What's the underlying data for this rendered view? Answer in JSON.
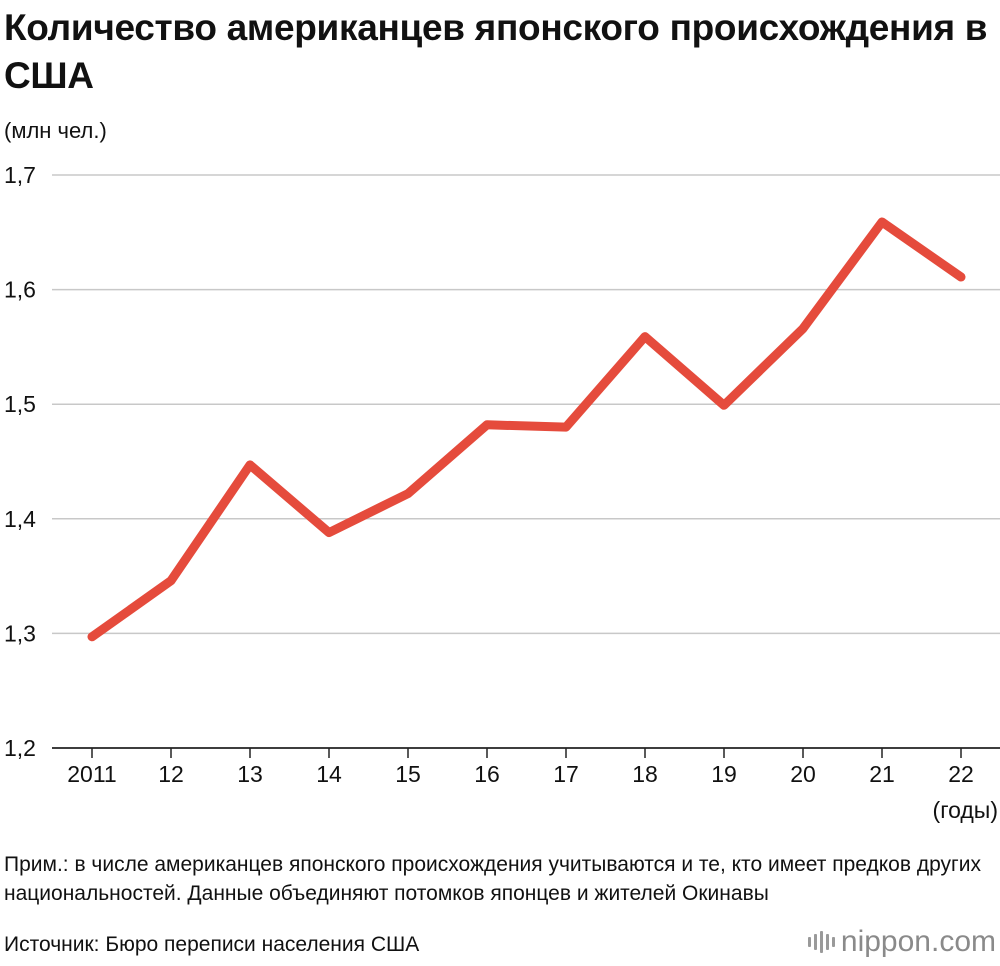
{
  "title": "Количество американцев японского происхождения в США",
  "units_label": "(млн чел.)",
  "x_unit_label": "(годы)",
  "note": "Прим.: в числе американцев японского происхождения учитываются и те, кто имеет предков других национальностей. Данные объединяют потомков японцев и жителей Окинавы",
  "source": "Источник: Бюро переписи населения США",
  "brand": "nippon.com",
  "chart_data": {
    "type": "line",
    "title": "Количество американцев японского происхождения в США",
    "xlabel": "(годы)",
    "ylabel": "(млн чел.)",
    "categories": [
      "2011",
      "12",
      "13",
      "14",
      "15",
      "16",
      "17",
      "18",
      "19",
      "20",
      "21",
      "22"
    ],
    "series": [
      {
        "name": "Американцы японского происхождения",
        "values": [
          1.297,
          1.346,
          1.447,
          1.388,
          1.422,
          1.482,
          1.48,
          1.559,
          1.499,
          1.566,
          1.659,
          1.611
        ]
      }
    ],
    "ylim": [
      1.2,
      1.7
    ],
    "yticks": [
      "1,2",
      "1,3",
      "1,4",
      "1,5",
      "1,6",
      "1,7"
    ],
    "grid": true,
    "line_color": "#e54b3c"
  }
}
